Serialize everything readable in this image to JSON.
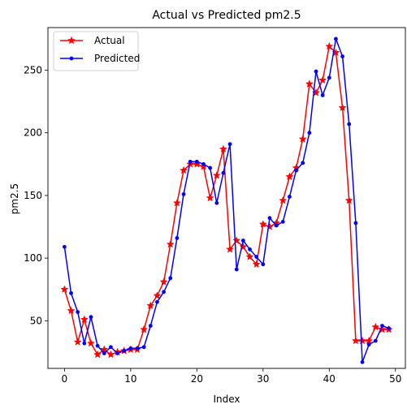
{
  "chart_data": {
    "type": "line",
    "title": "Actual vs Predicted pm2.5",
    "xlabel": "Index",
    "ylabel": "pm2.5",
    "xlim": [
      -2.5,
      51.5
    ],
    "ylim": [
      12,
      284
    ],
    "xticks": [
      0,
      10,
      20,
      30,
      40,
      50
    ],
    "yticks": [
      50,
      100,
      150,
      200,
      250
    ],
    "grid": false,
    "legend_position": "upper-left",
    "x": [
      0,
      1,
      2,
      3,
      4,
      5,
      6,
      7,
      8,
      9,
      10,
      11,
      12,
      13,
      14,
      15,
      16,
      17,
      18,
      19,
      20,
      21,
      22,
      23,
      24,
      25,
      26,
      27,
      28,
      29,
      30,
      31,
      32,
      33,
      34,
      35,
      36,
      37,
      38,
      39,
      40,
      41,
      42,
      43,
      44,
      45,
      46,
      47,
      48,
      49
    ],
    "series": [
      {
        "name": "Actual",
        "color": "#ff0000",
        "marker": "star",
        "values": [
          75,
          58,
          33,
          51,
          32,
          23,
          27,
          23,
          25,
          26,
          27,
          27,
          43,
          62,
          70,
          81,
          111,
          144,
          170,
          175,
          175,
          173,
          148,
          166,
          187,
          107,
          114,
          109,
          101,
          95,
          127,
          125,
          128,
          146,
          165,
          172,
          195,
          239,
          232,
          242,
          269,
          264,
          220,
          146,
          34,
          34,
          34,
          45,
          43,
          43
        ]
      },
      {
        "name": "Predicted",
        "color": "#0000ff",
        "marker": "dot",
        "values": [
          109,
          72,
          57,
          32,
          53,
          30,
          24,
          29,
          24,
          26,
          28,
          28,
          29,
          46,
          65,
          73,
          84,
          116,
          151,
          177,
          177,
          175,
          172,
          144,
          168,
          191,
          91,
          114,
          107,
          101,
          95,
          132,
          126,
          129,
          149,
          170,
          176,
          200,
          249,
          230,
          244,
          275,
          261,
          207,
          128,
          17,
          31,
          34,
          46,
          44
        ]
      }
    ]
  }
}
